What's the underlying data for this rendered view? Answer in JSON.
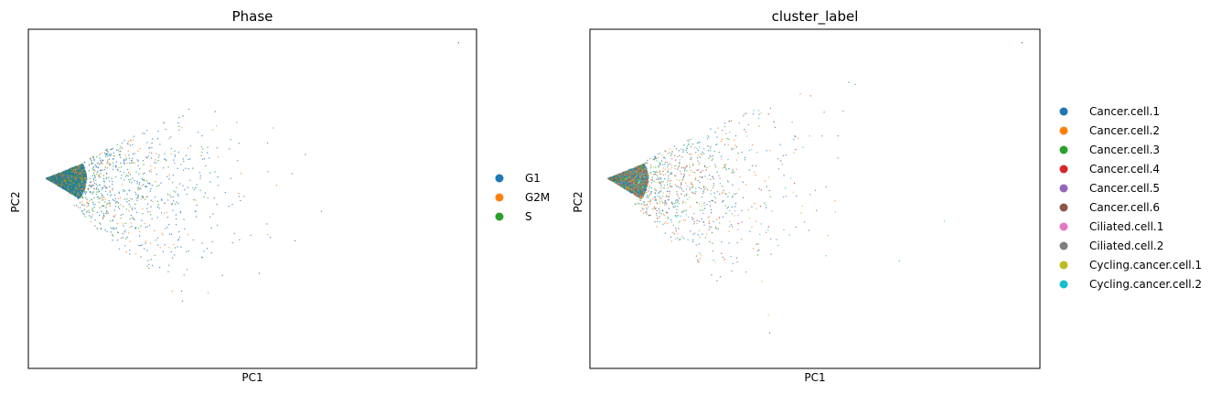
{
  "chart_data": [
    {
      "type": "scatter",
      "title": "Phase",
      "xlabel": "PC1",
      "ylabel": "PC2",
      "grid": false,
      "ticks": false,
      "legend_position": "right",
      "legend": [
        {
          "label": "G1",
          "color": "#1f77b4"
        },
        {
          "label": "G2M",
          "color": "#ff7f0e"
        },
        {
          "label": "S",
          "color": "#2ca02c"
        }
      ],
      "description_values": {
        "xlim": [
          0,
          100
        ],
        "ylim": [
          0,
          100
        ],
        "cluster_apex": [
          4,
          56
        ],
        "approx_point_count": 4200
      }
    },
    {
      "type": "scatter",
      "title": "cluster_label",
      "xlabel": "PC1",
      "ylabel": "PC2",
      "grid": false,
      "ticks": false,
      "legend_position": "right",
      "legend": [
        {
          "label": "Cancer.cell.1",
          "color": "#1f77b4"
        },
        {
          "label": "Cancer.cell.2",
          "color": "#ff7f0e"
        },
        {
          "label": "Cancer.cell.3",
          "color": "#2ca02c"
        },
        {
          "label": "Cancer.cell.4",
          "color": "#d62728"
        },
        {
          "label": "Cancer.cell.5",
          "color": "#9467bd"
        },
        {
          "label": "Cancer.cell.6",
          "color": "#8c564b"
        },
        {
          "label": "Ciliated.cell.1",
          "color": "#e377c2"
        },
        {
          "label": "Ciliated.cell.2",
          "color": "#7f7f7f"
        },
        {
          "label": "Cycling.cancer.cell.1",
          "color": "#bcbd22"
        },
        {
          "label": "Cycling.cancer.cell.2",
          "color": "#17becf"
        }
      ],
      "description_values": {
        "xlim": [
          0,
          100
        ],
        "ylim": [
          0,
          100
        ],
        "cluster_apex": [
          4,
          56
        ],
        "approx_point_count": 4200
      }
    }
  ]
}
